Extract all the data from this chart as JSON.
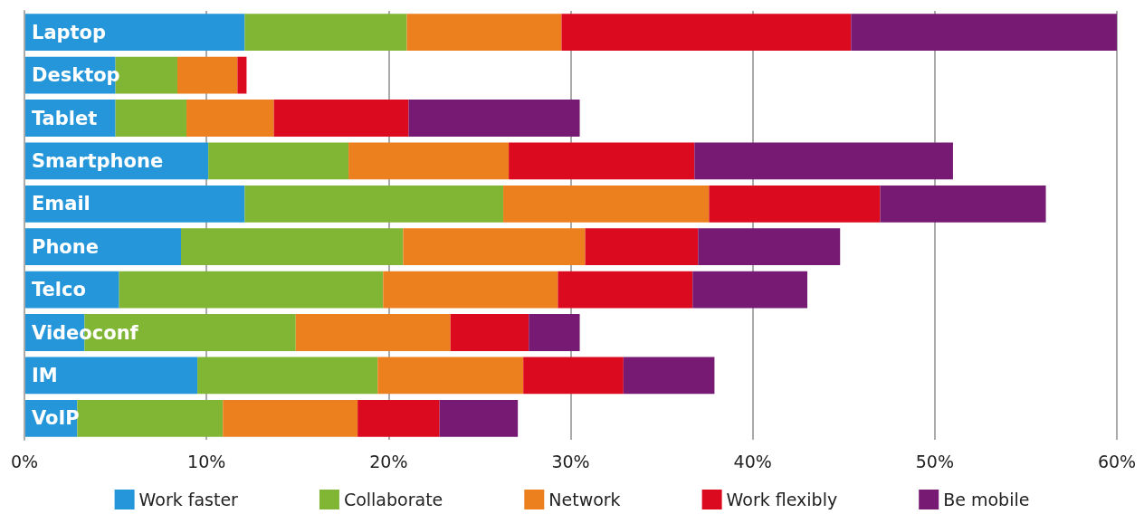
{
  "chart_data": {
    "type": "bar",
    "orientation": "horizontal",
    "stacked": true,
    "categories": [
      "Laptop",
      "Desktop",
      "Tablet",
      "Smartphone",
      "Email",
      "Phone",
      "Telco",
      "Videoconf",
      "IM",
      "VoIP"
    ],
    "series": [
      {
        "name": "Work faster",
        "color": "#2596d9",
        "values": [
          12.1,
          5.0,
          5.0,
          10.1,
          12.1,
          8.6,
          5.2,
          3.3,
          9.5,
          2.9
        ]
      },
      {
        "name": "Collaborate",
        "color": "#80b634",
        "values": [
          8.9,
          3.4,
          3.9,
          7.7,
          14.2,
          12.2,
          14.5,
          11.6,
          9.9,
          8.0
        ]
      },
      {
        "name": "Network",
        "color": "#ec7f1e",
        "values": [
          8.5,
          3.3,
          4.8,
          8.8,
          11.3,
          10.0,
          9.6,
          8.5,
          8.0,
          7.4
        ]
      },
      {
        "name": "Work flexibly",
        "color": "#dc0a1e",
        "values": [
          15.9,
          0.5,
          7.4,
          10.2,
          9.4,
          6.2,
          7.4,
          4.3,
          5.5,
          4.5
        ]
      },
      {
        "name": "Be mobile",
        "color": "#761a73",
        "values": [
          14.6,
          0,
          9.4,
          14.2,
          9.1,
          7.8,
          6.3,
          2.8,
          5.0,
          4.3
        ]
      }
    ],
    "xlim": [
      0,
      60
    ],
    "xticks": [
      {
        "value": 0,
        "label": "0%"
      },
      {
        "value": 10,
        "label": "10%"
      },
      {
        "value": 20,
        "label": "20%"
      },
      {
        "value": 30,
        "label": "30%"
      },
      {
        "value": 40,
        "label": "40%"
      },
      {
        "value": 50,
        "label": "50%"
      },
      {
        "value": 60,
        "label": "60%"
      }
    ],
    "grid": "x",
    "legend": "bottom"
  }
}
